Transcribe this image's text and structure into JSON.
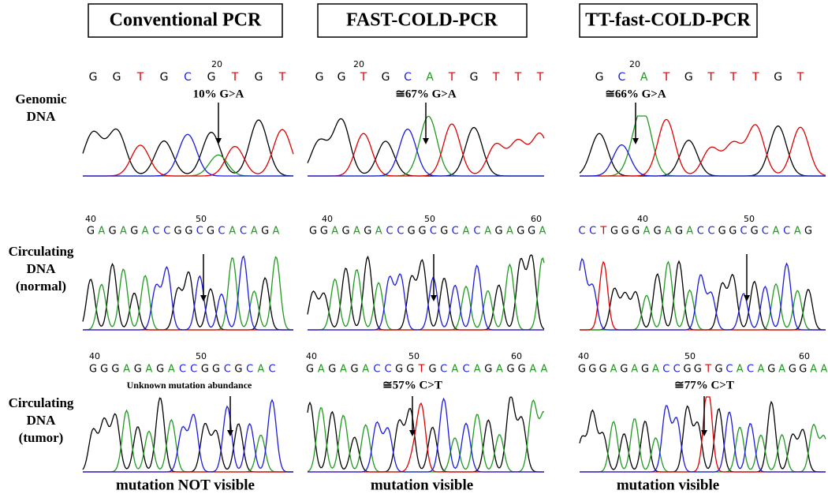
{
  "columns": [
    {
      "title": "Conventional PCR",
      "footer": "mutation NOT visible",
      "rows": [
        {
          "numbers": [
            "20"
          ],
          "bases": [
            "G",
            "G",
            "T",
            "G",
            "C",
            "G",
            "T",
            "G",
            "T"
          ],
          "annotation": "10% G>A"
        },
        {
          "numbers": [
            "40",
            "50"
          ],
          "bases": [
            "G",
            "A",
            "G",
            "A",
            "G",
            "A",
            "C",
            "C",
            "G",
            "G",
            "C",
            "G",
            "C",
            "A",
            "C",
            "A",
            "G",
            "A"
          ]
        },
        {
          "numbers": [
            "40",
            "50"
          ],
          "bases": [
            "G",
            "G",
            "G",
            "A",
            "G",
            "A",
            "G",
            "A",
            "C",
            "C",
            "G",
            "G",
            "C",
            "G",
            "C",
            "A",
            "C"
          ],
          "annotation": "Unknown mutation abundance"
        }
      ]
    },
    {
      "title": "FAST-COLD-PCR",
      "footer": "mutation visible",
      "rows": [
        {
          "numbers": [
            "20"
          ],
          "bases": [
            "G",
            "G",
            "T",
            "G",
            "C",
            "A",
            "T",
            "G",
            "T",
            "T",
            "T"
          ],
          "annotation": "≅67% G>A"
        },
        {
          "numbers": [
            "40",
            "50",
            "60"
          ],
          "bases": [
            "G",
            "G",
            "A",
            "G",
            "A",
            "G",
            "A",
            "C",
            "C",
            "G",
            "G",
            "C",
            "G",
            "C",
            "A",
            "C",
            "A",
            "G",
            "A",
            "G",
            "G",
            "A"
          ]
        },
        {
          "numbers": [
            "40",
            "50",
            "60"
          ],
          "bases": [
            "G",
            "A",
            "G",
            "A",
            "G",
            "A",
            "C",
            "C",
            "G",
            "G",
            "T",
            "G",
            "C",
            "A",
            "C",
            "A",
            "G",
            "A",
            "G",
            "G",
            "A",
            "A"
          ],
          "annotation": "≅57% C>T"
        }
      ]
    },
    {
      "title": "TT-fast-COLD-PCR",
      "footer": "mutation visible",
      "rows": [
        {
          "numbers": [
            "20"
          ],
          "bases": [
            "G",
            "C",
            "A",
            "T",
            "G",
            "T",
            "T",
            "T",
            "G",
            "T"
          ],
          "annotation": "≅66% G>A"
        },
        {
          "numbers": [
            "40",
            "50"
          ],
          "bases": [
            "C",
            "C",
            "T",
            "G",
            "G",
            "G",
            "A",
            "G",
            "A",
            "G",
            "A",
            "C",
            "C",
            "G",
            "G",
            "C",
            "G",
            "C",
            "A",
            "C",
            "A",
            "G"
          ]
        },
        {
          "numbers": [
            "40",
            "50",
            "60"
          ],
          "bases": [
            "G",
            "G",
            "G",
            "A",
            "G",
            "A",
            "G",
            "A",
            "C",
            "C",
            "G",
            "G",
            "T",
            "G",
            "C",
            "A",
            "C",
            "A",
            "G",
            "A",
            "G",
            "G",
            "A",
            "A"
          ],
          "annotation": "≅77% C>T"
        }
      ]
    }
  ],
  "row_labels": [
    [
      "Genomic",
      "DNA"
    ],
    [
      "Circulating",
      "DNA",
      "(normal)"
    ],
    [
      "Circulating",
      "DNA",
      "(tumor)"
    ]
  ]
}
